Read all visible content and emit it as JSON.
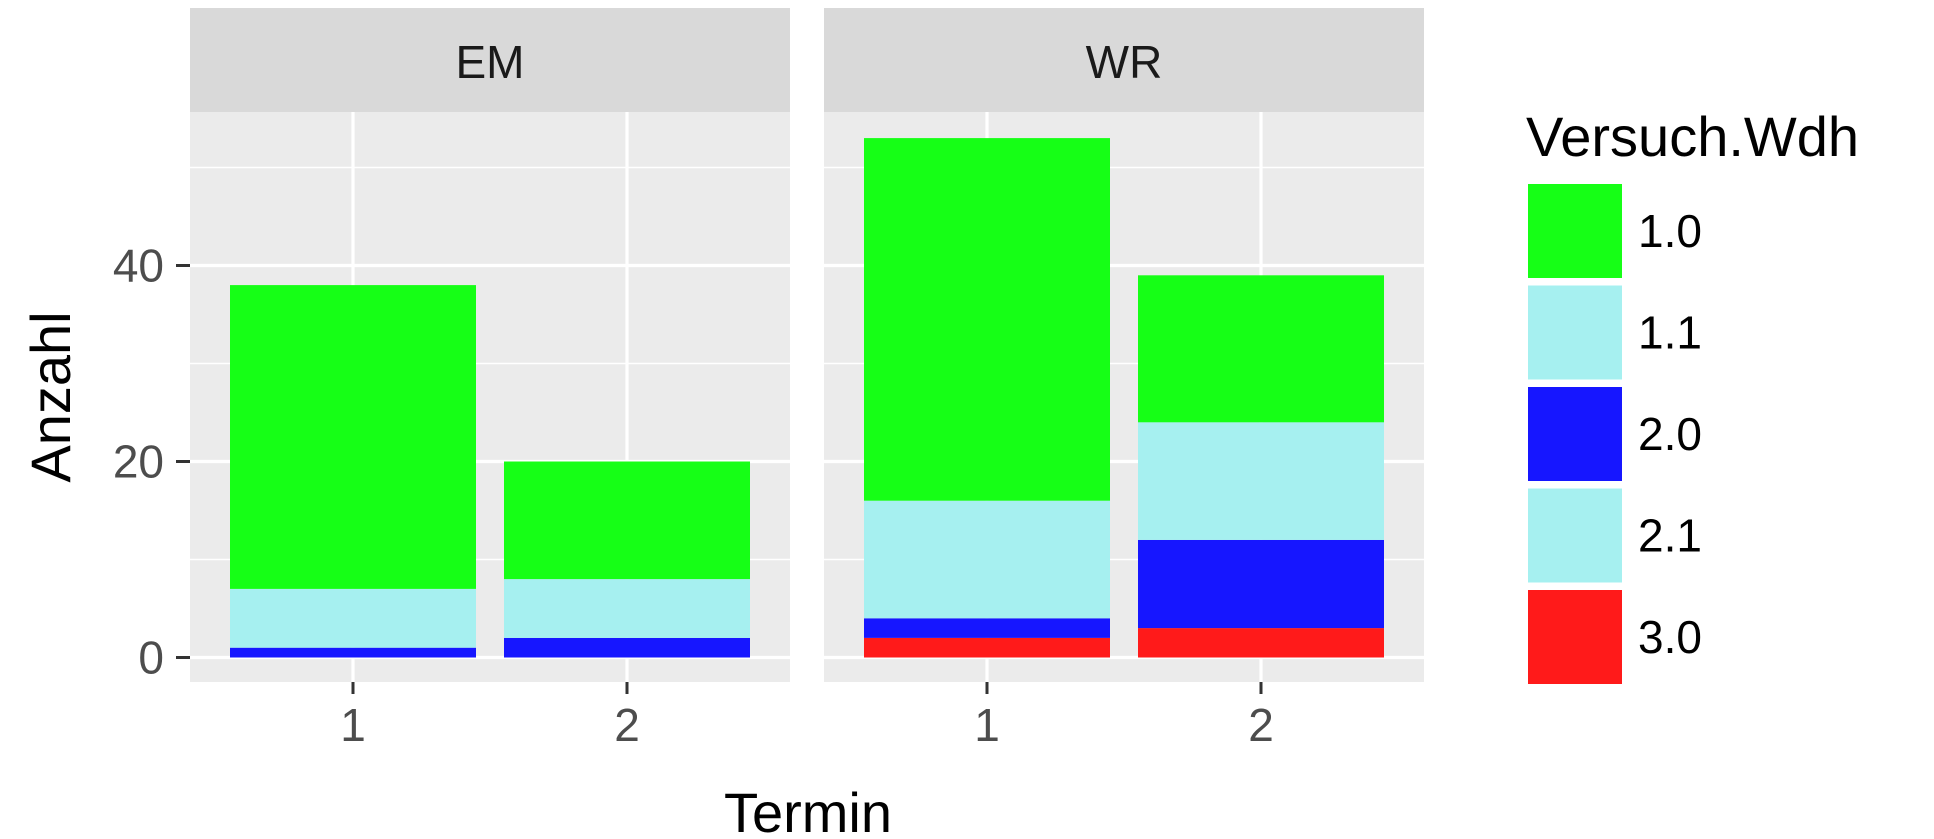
{
  "chart_data": {
    "type": "bar",
    "stacked": true,
    "facets": [
      "EM",
      "WR"
    ],
    "categories": [
      "1",
      "2"
    ],
    "xlabel": "Termin",
    "ylabel": "Anzahl",
    "ylim": [
      0,
      55
    ],
    "yticks": [
      "0",
      "20",
      "40"
    ],
    "grid": true,
    "legend": {
      "title": "Versuch.Wdh",
      "position": "right",
      "entries": [
        "1.0",
        "1.1",
        "2.0",
        "2.1",
        "3.0"
      ]
    },
    "series": [
      {
        "name": "1.0",
        "color": "#16ff16",
        "EM": [
          31,
          12
        ],
        "WR": [
          37,
          15
        ]
      },
      {
        "name": "1.1",
        "color": "#a6f0f0",
        "EM": [
          6,
          6
        ],
        "WR": [
          12,
          12
        ]
      },
      {
        "name": "2.0",
        "color": "#1616ff",
        "EM": [
          1,
          2
        ],
        "WR": [
          2,
          9
        ]
      },
      {
        "name": "2.1",
        "color": "#a6f0f0",
        "EM": [
          0,
          0
        ],
        "WR": [
          0,
          0
        ]
      },
      {
        "name": "3.0",
        "color": "#ff1a1a",
        "EM": [
          0,
          0
        ],
        "WR": [
          2,
          3
        ]
      }
    ]
  }
}
